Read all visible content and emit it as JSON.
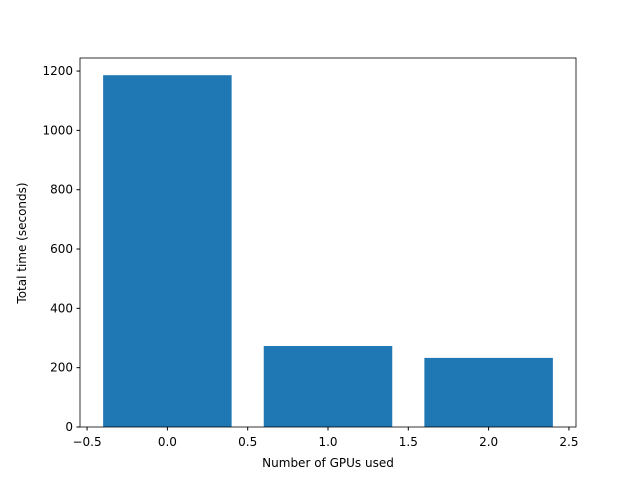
{
  "chart_data": {
    "type": "bar",
    "x": [
      0,
      1,
      2
    ],
    "values": [
      1186,
      273,
      233
    ],
    "color": "#1f77b4",
    "xlabel": "Number of GPUs used",
    "ylabel": "Total time (seconds)",
    "xlim": [
      -0.544,
      2.544
    ],
    "ylim": [
      0,
      1244
    ],
    "xticks": [
      {
        "value": -0.5,
        "label": "−0.5"
      },
      {
        "value": 0,
        "label": "0.0"
      },
      0.5,
      {
        "value": 1,
        "label": "1.0"
      },
      1.5,
      {
        "value": 2,
        "label": "2.0"
      },
      2.5
    ],
    "yticks": [
      0,
      200,
      400,
      600,
      800,
      1000,
      1200
    ],
    "grid": false
  }
}
